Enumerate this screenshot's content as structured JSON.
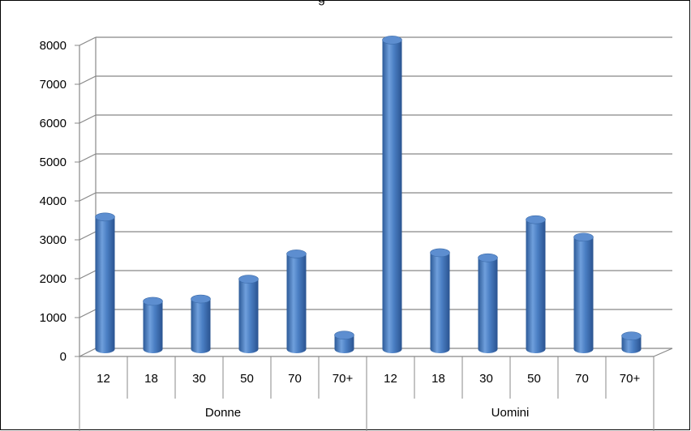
{
  "chart_data": {
    "type": "bar",
    "title": "",
    "title_visible_fragment": "g",
    "xlabel": "",
    "ylabel": "",
    "ylim": [
      0,
      8000
    ],
    "ytick_step": 1000,
    "yticks": [
      "0",
      "1000",
      "2000",
      "3000",
      "4000",
      "5000",
      "6000",
      "7000",
      "8000"
    ],
    "grid": true,
    "style": "3d-cylinder",
    "groups": [
      {
        "name": "Donne",
        "categories": [
          "12",
          "18",
          "30",
          "50",
          "70",
          "70+"
        ],
        "values": [
          3400,
          1230,
          1290,
          1800,
          2450,
          360
        ]
      },
      {
        "name": "Uomini",
        "categories": [
          "12",
          "18",
          "30",
          "50",
          "70",
          "70+"
        ],
        "values": [
          7950,
          2480,
          2350,
          3330,
          2880,
          340
        ]
      }
    ],
    "bar_color": "#4a7ec3"
  }
}
